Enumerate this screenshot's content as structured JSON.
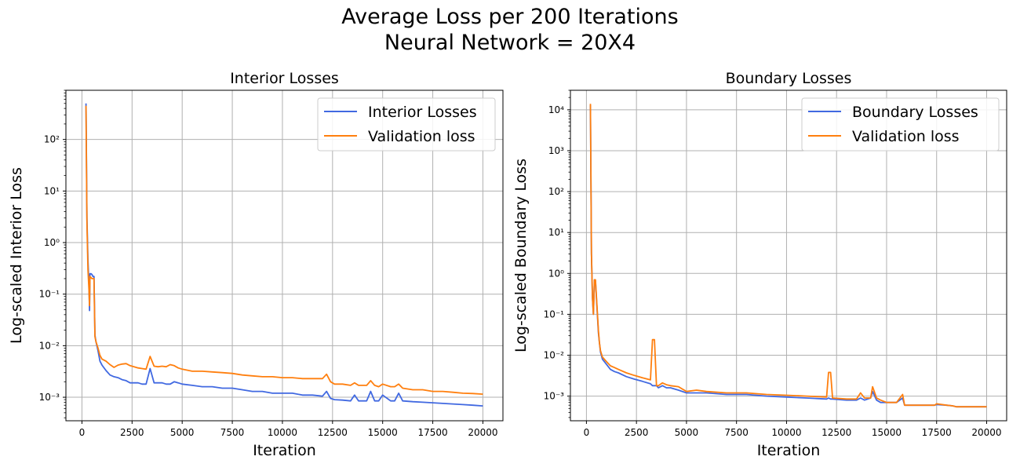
{
  "figure": {
    "title_line1": "Average Loss per 200 Iterations",
    "title_line2": "Neural Network = 20X4"
  },
  "chart_data": [
    {
      "type": "line",
      "title": "Interior Losses",
      "xlabel": "Iteration",
      "ylabel": "Log-scaled Interior Loss",
      "yscale": "log",
      "xlim": [
        -800,
        21000
      ],
      "ylim": [
        0.00035,
        900
      ],
      "xticks": [
        0,
        2500,
        5000,
        7500,
        10000,
        12500,
        15000,
        17500,
        20000
      ],
      "xtick_labels": [
        "0",
        "2500",
        "5000",
        "7500",
        "10000",
        "12500",
        "15000",
        "17500",
        "20000"
      ],
      "yticks": [
        0.001,
        0.01,
        0.1,
        1,
        10,
        100
      ],
      "ytick_labels": [
        "10⁻³",
        "10⁻²",
        "10⁻¹",
        "10⁰",
        "10¹",
        "10²"
      ],
      "grid": true,
      "legend_position": "top-right",
      "colors": {
        "series0": "#4169e1",
        "series1": "#ff7f0e"
      },
      "series": [
        {
          "name": "Interior Losses",
          "x": [
            200,
            250,
            300,
            350,
            380,
            400,
            450,
            500,
            550,
            600,
            650,
            700,
            800,
            900,
            1000,
            1200,
            1400,
            1600,
            1800,
            2000,
            2200,
            2400,
            2600,
            2800,
            3000,
            3200,
            3400,
            3600,
            3800,
            4000,
            4200,
            4400,
            4600,
            4800,
            5000,
            5500,
            6000,
            6500,
            7000,
            7500,
            8000,
            8500,
            9000,
            9500,
            10000,
            10500,
            11000,
            11500,
            12000,
            12200,
            12400,
            12600,
            13000,
            13400,
            13600,
            13800,
            14000,
            14200,
            14400,
            14600,
            14800,
            15000,
            15400,
            15600,
            15800,
            16000,
            16500,
            17000,
            17500,
            18000,
            18500,
            19000,
            19500,
            20000
          ],
          "y": [
            500,
            3.0,
            0.45,
            0.15,
            0.048,
            0.25,
            0.25,
            0.24,
            0.22,
            0.22,
            0.016,
            0.012,
            0.008,
            0.005,
            0.0042,
            0.0033,
            0.0027,
            0.0025,
            0.0024,
            0.0022,
            0.0021,
            0.0019,
            0.0019,
            0.0019,
            0.0018,
            0.0018,
            0.0036,
            0.0019,
            0.0019,
            0.0019,
            0.0018,
            0.0018,
            0.002,
            0.0019,
            0.0018,
            0.0017,
            0.0016,
            0.0016,
            0.0015,
            0.0015,
            0.0014,
            0.0013,
            0.0013,
            0.0012,
            0.0012,
            0.0012,
            0.0011,
            0.0011,
            0.00105,
            0.0013,
            0.00095,
            0.0009,
            0.00088,
            0.00085,
            0.0011,
            0.00085,
            0.00085,
            0.00085,
            0.0013,
            0.00085,
            0.00085,
            0.0011,
            0.00085,
            0.00085,
            0.0012,
            0.00085,
            0.00082,
            0.0008,
            0.00078,
            0.00076,
            0.00074,
            0.00072,
            0.0007,
            0.00068
          ]
        },
        {
          "name": "Validation loss",
          "x": [
            200,
            250,
            300,
            350,
            380,
            400,
            450,
            500,
            550,
            600,
            650,
            700,
            800,
            900,
            1000,
            1200,
            1400,
            1600,
            1800,
            2000,
            2200,
            2400,
            2600,
            2800,
            3000,
            3200,
            3400,
            3600,
            3800,
            4000,
            4200,
            4400,
            4600,
            4800,
            5000,
            5500,
            6000,
            6500,
            7000,
            7500,
            8000,
            8500,
            9000,
            9500,
            10000,
            10500,
            11000,
            11500,
            12000,
            12200,
            12400,
            12600,
            13000,
            13400,
            13600,
            13800,
            14000,
            14200,
            14400,
            14600,
            14800,
            15000,
            15400,
            15600,
            15800,
            16000,
            16500,
            17000,
            17500,
            18000,
            18500,
            19000,
            19500,
            20000
          ],
          "y": [
            450,
            2.5,
            0.3,
            0.12,
            0.06,
            0.22,
            0.21,
            0.2,
            0.2,
            0.2,
            0.015,
            0.012,
            0.009,
            0.0065,
            0.0055,
            0.005,
            0.0043,
            0.0038,
            0.0042,
            0.0044,
            0.0045,
            0.0041,
            0.0039,
            0.0037,
            0.0036,
            0.0035,
            0.0062,
            0.004,
            0.0039,
            0.004,
            0.0039,
            0.0043,
            0.0041,
            0.0037,
            0.0035,
            0.0032,
            0.0032,
            0.0031,
            0.003,
            0.0029,
            0.0027,
            0.0026,
            0.0025,
            0.0025,
            0.0024,
            0.0024,
            0.0023,
            0.0023,
            0.0023,
            0.0028,
            0.002,
            0.0018,
            0.0018,
            0.0017,
            0.0019,
            0.0017,
            0.0017,
            0.0017,
            0.0021,
            0.0017,
            0.0016,
            0.0018,
            0.0016,
            0.0016,
            0.0018,
            0.0015,
            0.0014,
            0.0014,
            0.0013,
            0.0013,
            0.00125,
            0.0012,
            0.00118,
            0.00115
          ]
        }
      ]
    },
    {
      "type": "line",
      "title": "Boundary Losses",
      "xlabel": "Iteration",
      "ylabel": "Log-scaled Boundary Loss",
      "yscale": "log",
      "xlim": [
        -800,
        21000
      ],
      "ylim": [
        0.00025,
        30000
      ],
      "xticks": [
        0,
        2500,
        5000,
        7500,
        10000,
        12500,
        15000,
        17500,
        20000
      ],
      "xtick_labels": [
        "0",
        "2500",
        "5000",
        "7500",
        "10000",
        "12500",
        "15000",
        "17500",
        "20000"
      ],
      "yticks": [
        0.001,
        0.01,
        0.1,
        1,
        10,
        100,
        1000,
        10000
      ],
      "ytick_labels": [
        "10⁻³",
        "10⁻²",
        "10⁻¹",
        "10⁰",
        "10¹",
        "10²",
        "10³",
        "10⁴"
      ],
      "grid": true,
      "legend_position": "top-right",
      "colors": {
        "series0": "#4169e1",
        "series1": "#ff7f0e"
      },
      "series": [
        {
          "name": "Boundary Losses",
          "x": [
            200,
            250,
            300,
            350,
            400,
            450,
            600,
            650,
            700,
            800,
            1000,
            1200,
            1400,
            1600,
            2000,
            2400,
            2800,
            3200,
            3300,
            3400,
            3500,
            3600,
            3800,
            4000,
            4200,
            4600,
            5000,
            5500,
            6000,
            7000,
            8000,
            9000,
            10000,
            11000,
            12000,
            12100,
            12200,
            12300,
            13000,
            13500,
            13700,
            13900,
            14200,
            14300,
            14500,
            14700,
            15000,
            15500,
            15800,
            15900,
            16000,
            17000,
            17400,
            17500,
            18000,
            18300,
            18500,
            19000,
            20000
          ],
          "y": [
            13000,
            3.0,
            0.25,
            0.1,
            0.7,
            0.65,
            0.035,
            0.02,
            0.012,
            0.008,
            0.006,
            0.0045,
            0.004,
            0.0037,
            0.003,
            0.0026,
            0.0023,
            0.002,
            0.0018,
            0.0018,
            0.0018,
            0.0016,
            0.0018,
            0.0016,
            0.0016,
            0.0014,
            0.0012,
            0.0012,
            0.0012,
            0.0011,
            0.0011,
            0.001,
            0.00095,
            0.0009,
            0.00085,
            0.0009,
            0.00085,
            0.00085,
            0.0008,
            0.0008,
            0.0009,
            0.0008,
            0.0009,
            0.0013,
            0.0008,
            0.0007,
            0.0007,
            0.0007,
            0.0009,
            0.0006,
            0.0006,
            0.0006,
            0.0006,
            0.00062,
            0.0006,
            0.00058,
            0.00055,
            0.00055,
            0.00055
          ]
        },
        {
          "name": "Validation loss",
          "x": [
            200,
            250,
            300,
            350,
            400,
            450,
            600,
            650,
            700,
            800,
            1000,
            1200,
            1400,
            1600,
            2000,
            2400,
            2800,
            3200,
            3300,
            3400,
            3500,
            3600,
            3800,
            4000,
            4200,
            4600,
            5000,
            5500,
            6000,
            7000,
            8000,
            9000,
            10000,
            11000,
            12000,
            12100,
            12200,
            12300,
            13000,
            13500,
            13700,
            13900,
            14200,
            14300,
            14500,
            14700,
            15000,
            15500,
            15800,
            15900,
            16000,
            17000,
            17400,
            17500,
            18000,
            18300,
            18500,
            19000,
            20000
          ],
          "y": [
            14000,
            3.0,
            0.25,
            0.1,
            0.7,
            0.7,
            0.04,
            0.02,
            0.013,
            0.009,
            0.007,
            0.0055,
            0.005,
            0.0045,
            0.0037,
            0.0032,
            0.0028,
            0.0025,
            0.024,
            0.024,
            0.0018,
            0.0018,
            0.0021,
            0.0019,
            0.0018,
            0.0017,
            0.0013,
            0.0014,
            0.0013,
            0.0012,
            0.0012,
            0.0011,
            0.00105,
            0.001,
            0.00095,
            0.0038,
            0.0038,
            0.0009,
            0.00085,
            0.00085,
            0.0012,
            0.0009,
            0.0009,
            0.0017,
            0.0009,
            0.0008,
            0.0007,
            0.0007,
            0.0011,
            0.0006,
            0.0006,
            0.0006,
            0.0006,
            0.00065,
            0.0006,
            0.00058,
            0.00055,
            0.00055,
            0.00055
          ]
        }
      ]
    }
  ]
}
